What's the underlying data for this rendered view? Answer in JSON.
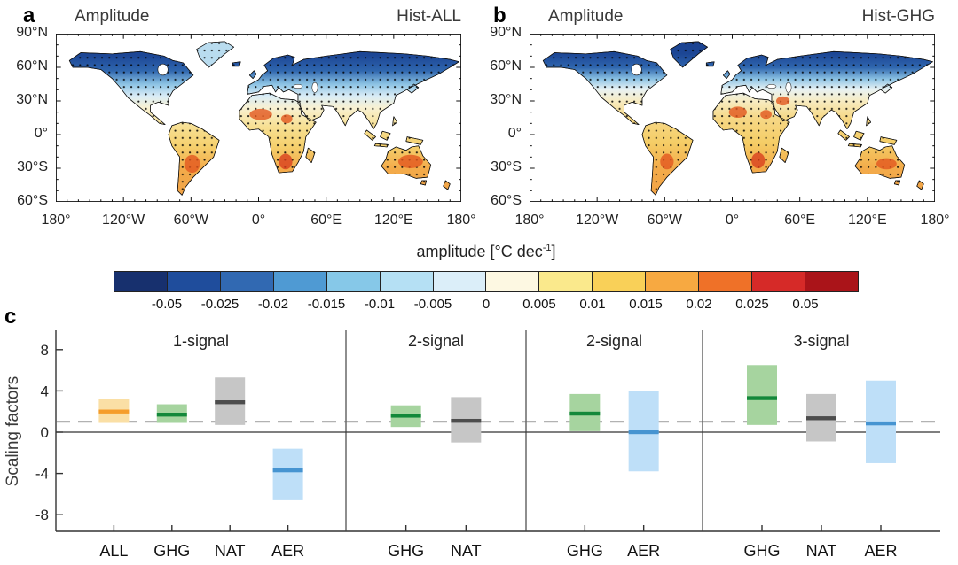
{
  "panels": {
    "a": {
      "letter": "a",
      "title": "Amplitude",
      "scenario": "Hist-ALL"
    },
    "b": {
      "letter": "b",
      "title": "Amplitude",
      "scenario": "Hist-GHG"
    },
    "c": {
      "letter": "c"
    }
  },
  "map_axes": {
    "lat_ticks": [
      "90°N",
      "60°N",
      "30°N",
      "0°",
      "30°S",
      "60°S"
    ],
    "lat_values": [
      90,
      60,
      30,
      0,
      -30,
      -60
    ],
    "lon_ticks": [
      "180°",
      "120°W",
      "60°W",
      "0°",
      "60°E",
      "120°E",
      "180°"
    ],
    "lon_values": [
      -180,
      -120,
      -60,
      0,
      60,
      120,
      180
    ]
  },
  "colorbar": {
    "title_prefix": "amplitude [°C dec",
    "title_sup": "-1",
    "title_suffix": "]",
    "tick_labels": [
      "-0.05",
      "-0.025",
      "-0.02",
      "-0.015",
      "-0.01",
      "-0.005",
      "0",
      "0.005",
      "0.01",
      "0.015",
      "0.02",
      "0.025",
      "0.05"
    ],
    "colors": [
      "#17306e",
      "#1f4d9c",
      "#3169b2",
      "#4f9ad3",
      "#86c8e8",
      "#b5e0f4",
      "#dbeef9",
      "#fdf8e2",
      "#fae98c",
      "#f9d058",
      "#f7a941",
      "#ef7128",
      "#d62a28",
      "#aa1419"
    ]
  },
  "chart_data": [
    {
      "type": "heatmap",
      "panel": "a",
      "title": "Amplitude",
      "scenario": "Hist-ALL",
      "variable": "amplitude [°C dec-1]",
      "lon_range": [
        -180,
        180
      ],
      "lat_range": [
        -60,
        90
      ],
      "stippling": "black dots over most land areas (significance)",
      "pattern": "strong negative (dark blue) over high northern latitudes (Canada, Scandinavia, Siberia); weak negative pale-blue band ~40-55N; positive (yellow-orange) over subtropics and southern continents with deep-orange maxima in the Sahel, southern Africa, southeastern South America and Australia"
    },
    {
      "type": "heatmap",
      "panel": "b",
      "title": "Amplitude",
      "scenario": "Hist-GHG",
      "variable": "amplitude [°C dec-1]",
      "lon_range": [
        -180,
        180
      ],
      "lat_range": [
        -60,
        90
      ],
      "stippling": "black dots over most land areas (significance)",
      "pattern": "similar to Hist-ALL but stronger positive (orange) across the northern subtropics including the Sahara, Middle East and central Asia; dark blue confined to higher northern latitudes"
    },
    {
      "type": "bar",
      "panel": "c",
      "title": "",
      "ylabel": "Scaling factors",
      "ylim": [
        -10,
        10
      ],
      "yticks": [
        8,
        4,
        0,
        -4,
        -8
      ],
      "reference_lines": [
        {
          "y": 0,
          "style": "solid"
        },
        {
          "y": 1,
          "style": "dashed"
        }
      ],
      "groups": [
        {
          "label": "1-signal",
          "bars": [
            {
              "name": "ALL",
              "low": 0.9,
              "high": 3.2,
              "best": 2.0,
              "color_key": "ALL"
            },
            {
              "name": "GHG",
              "low": 0.9,
              "high": 2.7,
              "best": 1.7,
              "color_key": "GHG"
            },
            {
              "name": "NAT",
              "low": 0.7,
              "high": 5.3,
              "best": 2.9,
              "color_key": "NAT"
            },
            {
              "name": "AER",
              "low": -6.6,
              "high": -1.6,
              "best": -3.7,
              "color_key": "AER"
            }
          ]
        },
        {
          "label": "2-signal",
          "bars": [
            {
              "name": "GHG",
              "low": 0.5,
              "high": 2.6,
              "best": 1.6,
              "color_key": "GHG"
            },
            {
              "name": "NAT",
              "low": -1.0,
              "high": 3.4,
              "best": 1.1,
              "color_key": "NAT"
            }
          ]
        },
        {
          "label": "2-signal",
          "bars": [
            {
              "name": "GHG",
              "low": 0.1,
              "high": 3.7,
              "best": 1.8,
              "color_key": "GHG"
            },
            {
              "name": "AER",
              "low": -3.8,
              "high": 4.0,
              "best": 0.0,
              "color_key": "AER"
            }
          ]
        },
        {
          "label": "3-signal",
          "bars": [
            {
              "name": "GHG",
              "low": 0.7,
              "high": 6.5,
              "best": 3.3,
              "color_key": "GHG"
            },
            {
              "name": "NAT",
              "low": -0.9,
              "high": 3.7,
              "best": 1.35,
              "color_key": "NAT"
            },
            {
              "name": "AER",
              "low": -3.0,
              "high": 5.0,
              "best": 0.85,
              "color_key": "AER"
            }
          ]
        }
      ],
      "colors": {
        "ALL": {
          "fill": "#fadfa5",
          "line": "#f59d2b"
        },
        "GHG": {
          "fill": "#a6d49f",
          "line": "#13883a"
        },
        "NAT": {
          "fill": "#c6c6c6",
          "line": "#4d4d4d"
        },
        "AER": {
          "fill": "#bedff8",
          "line": "#4694d1"
        }
      }
    }
  ]
}
